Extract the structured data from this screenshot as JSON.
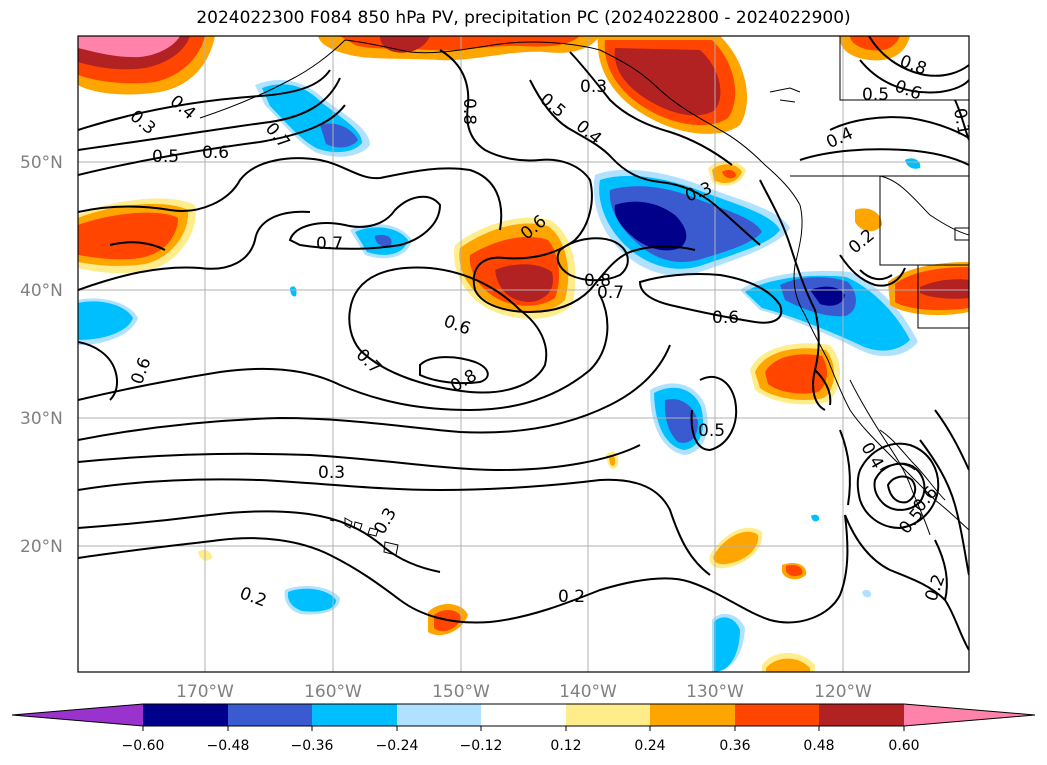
{
  "title": "2024022300 F084 850 hPa PV, precipitation PC (2024022800 - 2024022900)",
  "map": {
    "lon_ticks": [
      "170°W",
      "160°W",
      "150°W",
      "140°W",
      "130°W",
      "120°W"
    ],
    "lat_ticks": [
      "50°N",
      "40°N",
      "30°N",
      "20°N"
    ],
    "contour_labels": [
      "0.3",
      "0.4",
      "0.5",
      "0.6",
      "0.7",
      "0.8",
      "0.5",
      "0.4",
      "0.3",
      "0.7",
      "0.6",
      "0.8",
      "0.7",
      "0.6",
      "0.3",
      "0.6",
      "0.7",
      "0.8",
      "0.6",
      "0.5",
      "0.3",
      "0.3",
      "0.2",
      "0.2",
      "0.4",
      "0.5",
      "0.6",
      "0.2",
      "0.8",
      "0.6",
      "0.5",
      "0.4",
      "0.1",
      "0.2"
    ]
  },
  "colorbar": {
    "ticks": [
      "−0.60",
      "−0.48",
      "−0.36",
      "−0.24",
      "−0.12",
      "0.12",
      "0.24",
      "0.36",
      "0.48",
      "0.60"
    ],
    "colors": [
      "#9a32cd",
      "#00008b",
      "#3a5bd0",
      "#00bfff",
      "#b0e2ff",
      "#ffffff",
      "#ffec8b",
      "#ffa500",
      "#ff4500",
      "#b22222",
      "#ff82ab"
    ]
  }
}
